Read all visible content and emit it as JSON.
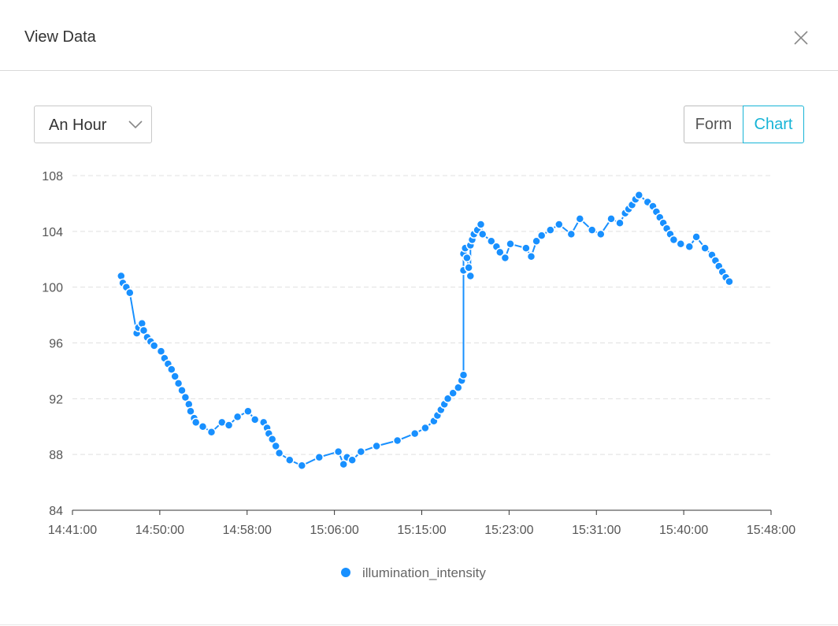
{
  "modal": {
    "title": "View Data"
  },
  "controls": {
    "range_value": "An Hour",
    "form_label": "Form",
    "chart_label": "Chart",
    "active_view": "Chart"
  },
  "colors": {
    "series": "#1890ff",
    "accent": "#17b4d6",
    "grid": "#e0e0e0",
    "axis_text": "#555555"
  },
  "icons": {
    "close": "close-icon",
    "dropdown": "chevron-down-icon"
  },
  "chart_data": {
    "type": "line",
    "xlabel": "",
    "ylabel": "",
    "x_ticks": [
      "14:41:00",
      "14:50:00",
      "14:58:00",
      "15:06:00",
      "15:15:00",
      "15:23:00",
      "15:31:00",
      "15:40:00",
      "15:48:00"
    ],
    "y_ticks": [
      84,
      88,
      92,
      96,
      100,
      104,
      108
    ],
    "ylim": [
      84,
      108
    ],
    "xlim": [
      "14:41:00",
      "15:48:00"
    ],
    "grid": "horizontal dashed",
    "legend_position": "bottom",
    "series": [
      {
        "name": "illumination_intensity",
        "points": [
          [
            "14:45:40",
            100.8
          ],
          [
            "14:45:50",
            100.3
          ],
          [
            "14:46:10",
            100.0
          ],
          [
            "14:46:30",
            99.6
          ],
          [
            "14:47:10",
            96.7
          ],
          [
            "14:47:20",
            97.1
          ],
          [
            "14:47:40",
            97.4
          ],
          [
            "14:47:50",
            96.9
          ],
          [
            "14:48:10",
            96.4
          ],
          [
            "14:48:30",
            96.1
          ],
          [
            "14:48:50",
            95.8
          ],
          [
            "14:49:30",
            95.4
          ],
          [
            "14:49:50",
            94.9
          ],
          [
            "14:50:10",
            94.5
          ],
          [
            "14:50:30",
            94.1
          ],
          [
            "14:50:50",
            93.6
          ],
          [
            "14:51:10",
            93.1
          ],
          [
            "14:51:30",
            92.6
          ],
          [
            "14:51:50",
            92.1
          ],
          [
            "14:52:10",
            91.6
          ],
          [
            "14:52:20",
            91.1
          ],
          [
            "14:52:40",
            90.6
          ],
          [
            "14:52:50",
            90.3
          ],
          [
            "14:53:30",
            90.0
          ],
          [
            "14:54:20",
            89.6
          ],
          [
            "14:55:20",
            90.3
          ],
          [
            "14:56:00",
            90.1
          ],
          [
            "14:56:50",
            90.7
          ],
          [
            "14:57:50",
            91.1
          ],
          [
            "14:58:30",
            90.5
          ],
          [
            "14:59:20",
            90.3
          ],
          [
            "14:59:40",
            89.9
          ],
          [
            "14:59:50",
            89.5
          ],
          [
            "15:00:10",
            89.1
          ],
          [
            "15:00:30",
            88.6
          ],
          [
            "15:00:50",
            88.1
          ],
          [
            "15:01:50",
            87.6
          ],
          [
            "15:03:00",
            87.2
          ],
          [
            "15:04:40",
            87.8
          ],
          [
            "15:06:30",
            88.2
          ],
          [
            "15:07:00",
            87.3
          ],
          [
            "15:07:20",
            87.8
          ],
          [
            "15:07:50",
            87.6
          ],
          [
            "15:08:40",
            88.2
          ],
          [
            "15:10:10",
            88.6
          ],
          [
            "15:12:10",
            89.0
          ],
          [
            "15:13:50",
            89.5
          ],
          [
            "15:14:50",
            89.9
          ],
          [
            "15:15:40",
            90.4
          ],
          [
            "15:16:00",
            90.8
          ],
          [
            "15:16:20",
            91.2
          ],
          [
            "15:16:40",
            91.6
          ],
          [
            "15:17:00",
            92.0
          ],
          [
            "15:17:30",
            92.4
          ],
          [
            "15:18:00",
            92.8
          ],
          [
            "15:18:20",
            93.3
          ],
          [
            "15:18:30",
            93.7
          ],
          [
            "15:18:30",
            101.2
          ],
          [
            "15:18:30",
            102.4
          ],
          [
            "15:18:40",
            102.8
          ],
          [
            "15:18:50",
            102.1
          ],
          [
            "15:19:00",
            101.4
          ],
          [
            "15:19:10",
            100.8
          ],
          [
            "15:19:10",
            103.0
          ],
          [
            "15:19:20",
            103.4
          ],
          [
            "15:19:30",
            103.8
          ],
          [
            "15:19:50",
            104.1
          ],
          [
            "15:20:10",
            104.5
          ],
          [
            "15:20:20",
            103.8
          ],
          [
            "15:21:10",
            103.3
          ],
          [
            "15:21:40",
            102.9
          ],
          [
            "15:22:00",
            102.5
          ],
          [
            "15:22:30",
            102.1
          ],
          [
            "15:23:00",
            103.1
          ],
          [
            "15:24:30",
            102.8
          ],
          [
            "15:25:00",
            102.2
          ],
          [
            "15:25:30",
            103.3
          ],
          [
            "15:26:00",
            103.7
          ],
          [
            "15:26:50",
            104.1
          ],
          [
            "15:27:40",
            104.5
          ],
          [
            "15:28:50",
            103.8
          ],
          [
            "15:29:40",
            104.9
          ],
          [
            "15:30:50",
            104.1
          ],
          [
            "15:31:40",
            103.8
          ],
          [
            "15:32:40",
            104.9
          ],
          [
            "15:33:30",
            104.6
          ],
          [
            "15:34:00",
            105.3
          ],
          [
            "15:34:20",
            105.6
          ],
          [
            "15:34:40",
            105.9
          ],
          [
            "15:35:00",
            106.3
          ],
          [
            "15:35:20",
            106.6
          ],
          [
            "15:36:10",
            106.1
          ],
          [
            "15:36:40",
            105.8
          ],
          [
            "15:37:00",
            105.4
          ],
          [
            "15:37:20",
            105.0
          ],
          [
            "15:37:40",
            104.6
          ],
          [
            "15:38:00",
            104.2
          ],
          [
            "15:38:20",
            103.8
          ],
          [
            "15:38:40",
            103.4
          ],
          [
            "15:39:20",
            103.1
          ],
          [
            "15:40:10",
            102.9
          ],
          [
            "15:40:50",
            103.6
          ],
          [
            "15:41:40",
            102.8
          ],
          [
            "15:42:20",
            102.3
          ],
          [
            "15:42:40",
            101.9
          ],
          [
            "15:43:00",
            101.5
          ],
          [
            "15:43:20",
            101.1
          ],
          [
            "15:43:40",
            100.7
          ],
          [
            "15:44:00",
            100.4
          ]
        ]
      }
    ]
  }
}
